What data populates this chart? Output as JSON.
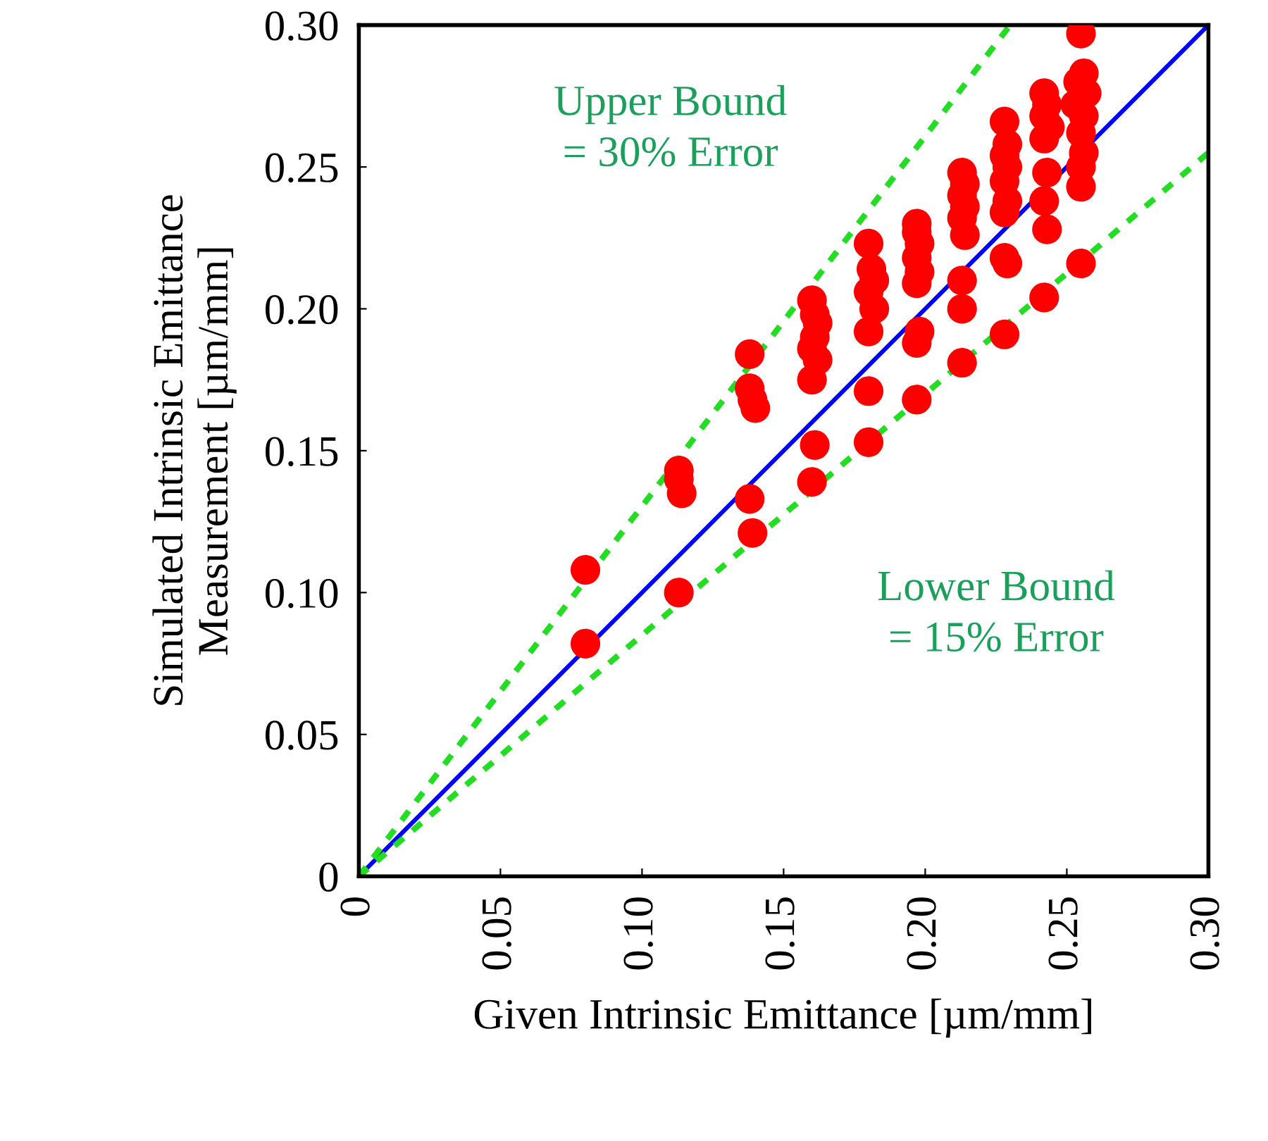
{
  "chart_data": {
    "type": "scatter",
    "xlabel": "Given Intrinsic Emittance [µm/mm]",
    "ylabel": "Simulated Intrinsic Emittance\nMeasurement [µm/mm]",
    "xlim": [
      0,
      0.3
    ],
    "ylim": [
      0,
      0.3
    ],
    "xticks": [
      {
        "value": 0,
        "label": "0"
      },
      {
        "value": 0.05,
        "label": "0.05"
      },
      {
        "value": 0.1,
        "label": "0.10"
      },
      {
        "value": 0.15,
        "label": "0.15"
      },
      {
        "value": 0.2,
        "label": "0.20"
      },
      {
        "value": 0.25,
        "label": "0.25"
      },
      {
        "value": 0.3,
        "label": "0.30"
      }
    ],
    "yticks": [
      {
        "value": 0,
        "label": "0"
      },
      {
        "value": 0.05,
        "label": "0.05"
      },
      {
        "value": 0.1,
        "label": "0.10"
      },
      {
        "value": 0.15,
        "label": "0.15"
      },
      {
        "value": 0.2,
        "label": "0.20"
      },
      {
        "value": 0.25,
        "label": "0.25"
      },
      {
        "value": 0.3,
        "label": "0.30"
      }
    ],
    "grid": false,
    "legend": false,
    "series": [
      {
        "type": "line",
        "color": "#0000ff",
        "line_style": "solid",
        "x": [
          0,
          0.3
        ],
        "values": [
          0,
          0.3
        ]
      },
      {
        "type": "line",
        "color": "#22dd22",
        "line_style": "dashed",
        "x": [
          0,
          0.23
        ],
        "values": [
          0,
          0.3
        ]
      },
      {
        "type": "line",
        "color": "#22dd22",
        "line_style": "dashed",
        "x": [
          0,
          0.3
        ],
        "values": [
          0,
          0.255
        ]
      },
      {
        "color": "#ff0000",
        "marker": "circle",
        "x": [
          0.08,
          0.08,
          0.113,
          0.113,
          0.114,
          0.113,
          0.138,
          0.138,
          0.139,
          0.14,
          0.138,
          0.139,
          0.16,
          0.161,
          0.162,
          0.161,
          0.16,
          0.162,
          0.16,
          0.161,
          0.16,
          0.18,
          0.181,
          0.182,
          0.18,
          0.182,
          0.18,
          0.18,
          0.18,
          0.197,
          0.197,
          0.198,
          0.197,
          0.198,
          0.197,
          0.198,
          0.197,
          0.197,
          0.213,
          0.214,
          0.213,
          0.214,
          0.213,
          0.214,
          0.213,
          0.213,
          0.213,
          0.228,
          0.229,
          0.228,
          0.229,
          0.228,
          0.229,
          0.228,
          0.228,
          0.229,
          0.228,
          0.242,
          0.243,
          0.242,
          0.244,
          0.242,
          0.243,
          0.242,
          0.243,
          0.242,
          0.255,
          0.256,
          0.254,
          0.257,
          0.253,
          0.256,
          0.255,
          0.256,
          0.255,
          0.255,
          0.255
        ],
        "values": [
          0.108,
          0.082,
          0.143,
          0.14,
          0.135,
          0.1,
          0.184,
          0.172,
          0.168,
          0.165,
          0.133,
          0.121,
          0.203,
          0.198,
          0.195,
          0.19,
          0.186,
          0.182,
          0.175,
          0.152,
          0.139,
          0.223,
          0.214,
          0.21,
          0.206,
          0.2,
          0.192,
          0.171,
          0.153,
          0.23,
          0.227,
          0.223,
          0.218,
          0.213,
          0.209,
          0.192,
          0.188,
          0.168,
          0.248,
          0.244,
          0.24,
          0.236,
          0.232,
          0.226,
          0.21,
          0.2,
          0.181,
          0.266,
          0.258,
          0.254,
          0.25,
          0.245,
          0.238,
          0.234,
          0.218,
          0.216,
          0.191,
          0.276,
          0.272,
          0.268,
          0.264,
          0.26,
          0.248,
          0.238,
          0.228,
          0.204,
          0.297,
          0.283,
          0.28,
          0.276,
          0.272,
          0.268,
          0.262,
          0.255,
          0.25,
          0.243,
          0.216
        ]
      }
    ],
    "annotations": [
      "Upper Bound\n= 30% Error",
      "Lower Bound\n= 15% Error"
    ]
  }
}
